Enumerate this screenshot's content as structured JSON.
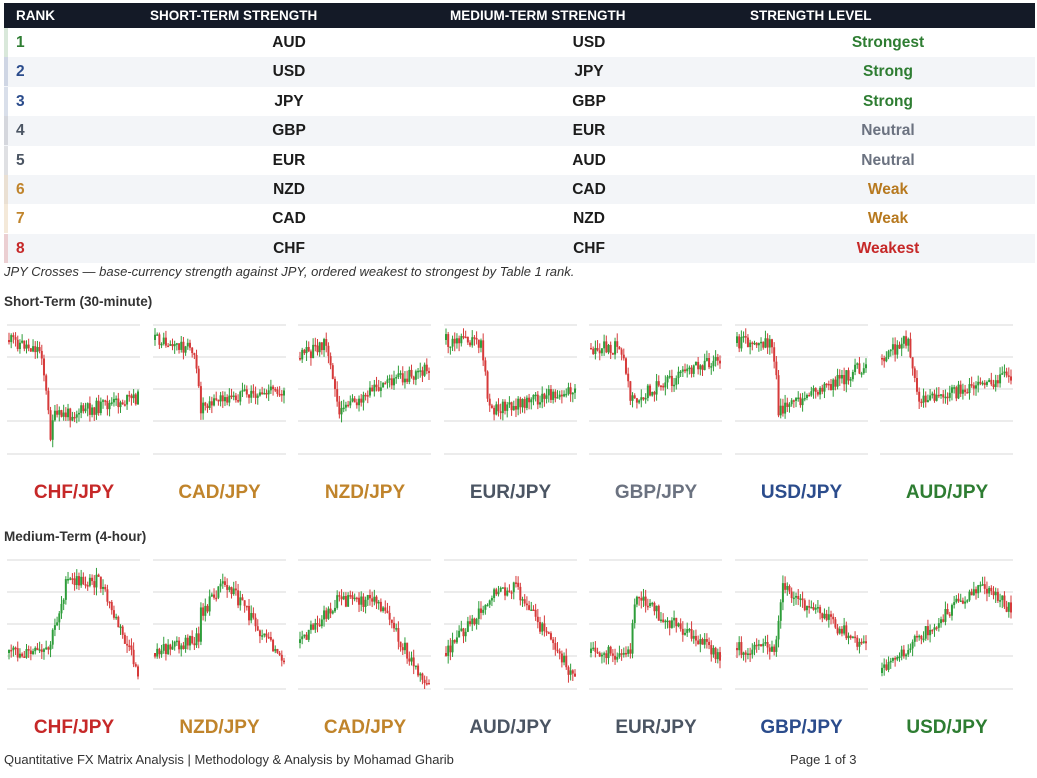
{
  "table": {
    "headers": {
      "rank": "RANK",
      "short": "SHORT-TERM STRENGTH",
      "medium": "MEDIUM-TERM STRENGTH",
      "level": "STRENGTH LEVEL"
    },
    "rows": [
      {
        "rank": "1",
        "short": "AUD",
        "medium": "USD",
        "level": "Strongest",
        "color": "#2e7d32"
      },
      {
        "rank": "2",
        "short": "USD",
        "medium": "JPY",
        "level": "Strong",
        "color": "#2e7d32"
      },
      {
        "rank": "3",
        "short": "JPY",
        "medium": "GBP",
        "level": "Strong",
        "color": "#2e7d32"
      },
      {
        "rank": "4",
        "short": "GBP",
        "medium": "EUR",
        "level": "Neutral",
        "color": "#6b7280"
      },
      {
        "rank": "5",
        "short": "EUR",
        "medium": "AUD",
        "level": "Neutral",
        "color": "#6b7280"
      },
      {
        "rank": "6",
        "short": "NZD",
        "medium": "CAD",
        "level": "Weak",
        "color": "#b7791f"
      },
      {
        "rank": "7",
        "short": "CAD",
        "medium": "NZD",
        "level": "Weak",
        "color": "#b7791f"
      },
      {
        "rank": "8",
        "short": "CHF",
        "medium": "CHF",
        "level": "Weakest",
        "color": "#c62828"
      }
    ],
    "rank_colors": [
      "#2e7d32",
      "#2b4c8c",
      "#2b4c8c",
      "#4b5563",
      "#4b5563",
      "#c0842b",
      "#c0842b",
      "#c62828"
    ]
  },
  "caption": "JPY Crosses — base-currency strength against JPY, ordered weakest to strongest by Table 1 rank.",
  "short_section": {
    "title": "Short-Term (30-minute)",
    "pairs": [
      {
        "label": "CHF/JPY",
        "color": "#c62828"
      },
      {
        "label": "CAD/JPY",
        "color": "#c0842b"
      },
      {
        "label": "NZD/JPY",
        "color": "#c0842b"
      },
      {
        "label": "EUR/JPY",
        "color": "#4b5563"
      },
      {
        "label": "GBP/JPY",
        "color": "#6b7280"
      },
      {
        "label": "USD/JPY",
        "color": "#2b4c8c"
      },
      {
        "label": "AUD/JPY",
        "color": "#2e7d32"
      }
    ]
  },
  "medium_section": {
    "title": "Medium-Term (4-hour)",
    "pairs": [
      {
        "label": "CHF/JPY",
        "color": "#c62828"
      },
      {
        "label": "NZD/JPY",
        "color": "#c0842b"
      },
      {
        "label": "CAD/JPY",
        "color": "#c0842b"
      },
      {
        "label": "AUD/JPY",
        "color": "#4b5563"
      },
      {
        "label": "EUR/JPY",
        "color": "#4b5563"
      },
      {
        "label": "GBP/JPY",
        "color": "#2b4c8c"
      },
      {
        "label": "USD/JPY",
        "color": "#2e7d32"
      }
    ]
  },
  "chart_colors": {
    "up": "#2e9d3a",
    "down": "#d63a3a",
    "grid": "#d9d9d9"
  },
  "footer": {
    "left": "Quantitative FX Matrix Analysis | Methodology & Analysis by Mohamad Gharib",
    "right": "Page 1 of 3"
  }
}
